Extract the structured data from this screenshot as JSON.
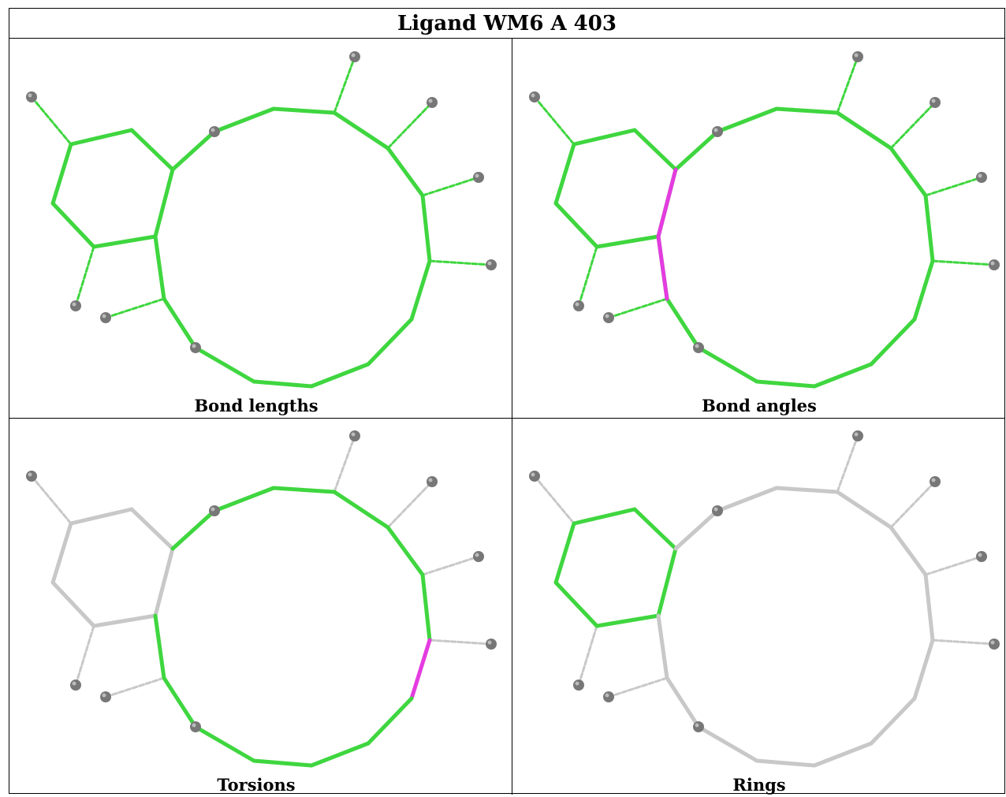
{
  "title": "Ligand WM6 A 403",
  "colors": {
    "ok": "#3fd63f",
    "outlier": "#e43ce0",
    "neutral": "#c8c8c8",
    "atom": "#777777"
  },
  "panels": [
    {
      "caption": "Bond lengths",
      "bonds": {
        "default": "ok"
      }
    },
    {
      "caption": "Bond angles",
      "bonds": {
        "default": "ok",
        "outlier_bonds": [
          [
            28,
            29
          ],
          [
            29,
            30
          ]
        ]
      }
    },
    {
      "caption": "Torsions",
      "bonds": {
        "default": "neutral",
        "ok_groups": [
          "macrocycle"
        ],
        "outlier_bonds": [
          [
            15,
            16
          ]
        ]
      }
    },
    {
      "caption": "Rings",
      "bonds": {
        "default": "neutral",
        "ok_groups": [
          "benzene"
        ]
      }
    }
  ]
}
